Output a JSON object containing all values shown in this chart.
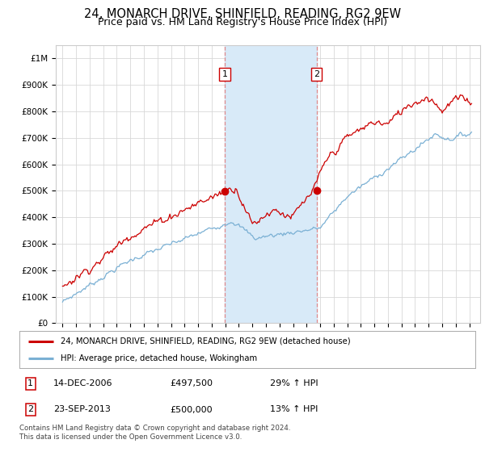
{
  "title": "24, MONARCH DRIVE, SHINFIELD, READING, RG2 9EW",
  "subtitle": "Price paid vs. HM Land Registry's House Price Index (HPI)",
  "title_fontsize": 10.5,
  "subtitle_fontsize": 9,
  "ylim": [
    0,
    1050000
  ],
  "yticks": [
    0,
    100000,
    200000,
    300000,
    400000,
    500000,
    600000,
    700000,
    800000,
    900000,
    1000000
  ],
  "ytick_labels": [
    "£0",
    "£100K",
    "£200K",
    "£300K",
    "£400K",
    "£500K",
    "£600K",
    "£700K",
    "£800K",
    "£900K",
    "£1M"
  ],
  "background_color": "#ffffff",
  "plot_bg_color": "#ffffff",
  "grid_color": "#d8d8d8",
  "line1_color": "#cc0000",
  "line2_color": "#7ab0d4",
  "shade_color": "#d8eaf8",
  "transaction1_x": 2006.958,
  "transaction1_y": 497500,
  "transaction2_x": 2013.729,
  "transaction2_y": 500000,
  "annotation1_label": "1",
  "annotation2_label": "2",
  "shade_x1": 2006.958,
  "shade_x2": 2013.729,
  "legend_line1": "24, MONARCH DRIVE, SHINFIELD, READING, RG2 9EW (detached house)",
  "legend_line2": "HPI: Average price, detached house, Wokingham",
  "table_row1": [
    "1",
    "14-DEC-2006",
    "£497,500",
    "29% ↑ HPI"
  ],
  "table_row2": [
    "2",
    "23-SEP-2013",
    "£500,000",
    "13% ↑ HPI"
  ],
  "footnote": "Contains HM Land Registry data © Crown copyright and database right 2024.\nThis data is licensed under the Open Government Licence v3.0.",
  "xmin": 1994.5,
  "xmax": 2025.8
}
